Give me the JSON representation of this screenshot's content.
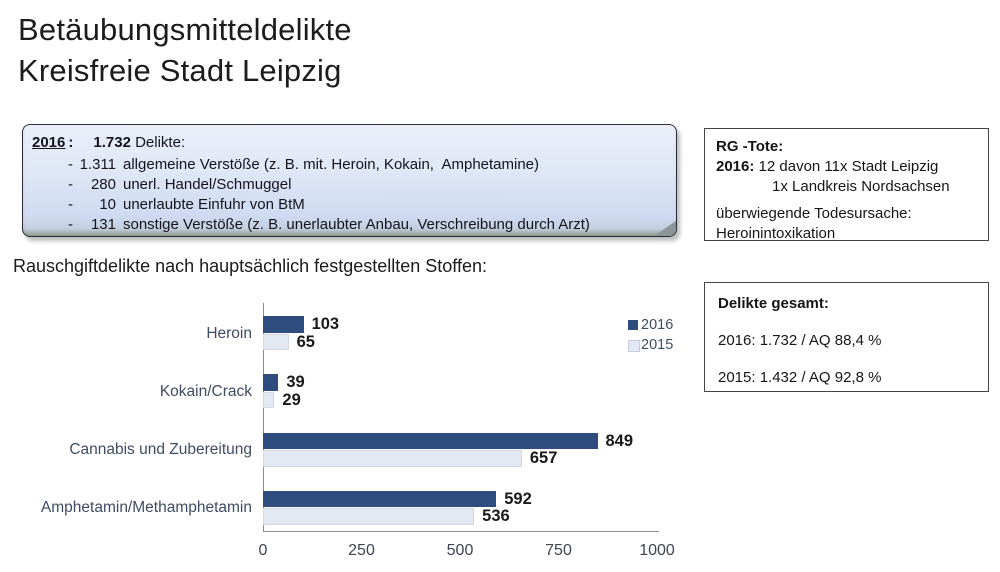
{
  "title": {
    "line1": "Betäubungsmitteldelikte",
    "line2": "Kreisfreie Stadt Leipzig"
  },
  "summary_box": {
    "year": "2016",
    "colon": ":",
    "total": "1.732",
    "total_suffix": " Delikte:",
    "items": [
      {
        "num": "1.311",
        "text": "allgemeine Verstöße (z. B. mit. Heroin, Kokain,  Amphetamine)"
      },
      {
        "num": "280",
        "text": "unerl. Handel/Schmuggel"
      },
      {
        "num": "10",
        "text": "unerlaubte Einfuhr von BtM"
      },
      {
        "num": "131",
        "text": "sonstige Verstöße (z. B. unerlaubter Anbau, Verschreibung durch Arzt)"
      }
    ]
  },
  "rg_tote_box": {
    "heading": "RG -Tote:",
    "year_label": "2016:",
    "line1_rest": " 12 davon 11x Stadt Leipzig",
    "line2": "1x Landkreis Nordsachsen",
    "cause_line1": "überwiegende Todesursache:",
    "cause_line2": "Heroinintoxikation"
  },
  "delikte_box": {
    "heading": "Delikte gesamt:",
    "line_2016": "2016: 1.732 / AQ 88,4 %",
    "line_2015": "2015: 1.432 / AQ 92,8 %"
  },
  "chart_section": {
    "heading": "Rauschgiftdelikte nach hauptsächlich festgestellten Stoffen:"
  },
  "chart_data": {
    "type": "bar",
    "orientation": "horizontal",
    "title": "Rauschgiftdelikte nach hauptsächlich festgestellten Stoffen:",
    "categories": [
      "Heroin",
      "Kokain/Crack",
      "Cannabis und Zubereitung",
      "Amphetamin/Methamphetamin"
    ],
    "series": [
      {
        "name": "2016",
        "color": "#2E4D7E",
        "values": [
          103,
          39,
          849,
          592
        ]
      },
      {
        "name": "2015",
        "color": "#E3E9F2",
        "values": [
          65,
          29,
          657,
          536
        ]
      }
    ],
    "xlim": [
      0,
      1000
    ],
    "xticks": [
      0,
      250,
      500,
      750,
      1000
    ],
    "legend": [
      "2016",
      "2015"
    ],
    "legend_position": "top-right",
    "value_labels": true,
    "grid": false
  },
  "colors": {
    "bar_2016": "#2E4D7E",
    "bar_2015": "#E3E9F2",
    "axis": "#8C8C8C",
    "chart_text": "#3F4C63",
    "summary_box_top": "#EAEFF8",
    "summary_box_bottom": "#C3CFE0"
  }
}
